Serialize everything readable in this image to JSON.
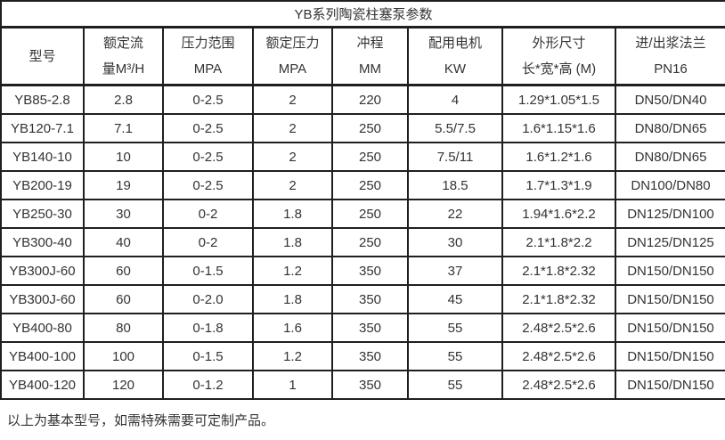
{
  "table": {
    "title": "YB系列陶瓷柱塞泵参数",
    "columns": [
      {
        "label": "型号",
        "sub": ""
      },
      {
        "label": "额定流",
        "sub": "量M³/H"
      },
      {
        "label": "压力范围",
        "sub": "MPA"
      },
      {
        "label": "额定压力",
        "sub": "MPA"
      },
      {
        "label": "冲程",
        "sub": "MM"
      },
      {
        "label": "配用电机",
        "sub": "KW"
      },
      {
        "label": "外形尺寸",
        "sub": "长*宽*高 (M)"
      },
      {
        "label": "进/出浆法兰",
        "sub": "PN16"
      }
    ],
    "rows": [
      [
        "YB85-2.8",
        "2.8",
        "0-2.5",
        "2",
        "220",
        "4",
        "1.29*1.05*1.5",
        "DN50/DN40"
      ],
      [
        "YB120-7.1",
        "7.1",
        "0-2.5",
        "2",
        "250",
        "5.5/7.5",
        "1.6*1.15*1.6",
        "DN80/DN65"
      ],
      [
        "YB140-10",
        "10",
        "0-2.5",
        "2",
        "250",
        "7.5/11",
        "1.6*1.2*1.6",
        "DN80/DN65"
      ],
      [
        "YB200-19",
        "19",
        "0-2.5",
        "2",
        "250",
        "18.5",
        "1.7*1.3*1.9",
        "DN100/DN80"
      ],
      [
        "YB250-30",
        "30",
        "0-2",
        "1.8",
        "250",
        "22",
        "1.94*1.6*2.2",
        "DN125/DN100"
      ],
      [
        "YB300-40",
        "40",
        "0-2",
        "1.8",
        "250",
        "30",
        "2.1*1.8*2.2",
        "DN125/DN125"
      ],
      [
        "YB300J-60",
        "60",
        "0-1.5",
        "1.2",
        "350",
        "37",
        "2.1*1.8*2.32",
        "DN150/DN150"
      ],
      [
        "YB300J-60",
        "60",
        "0-2.0",
        "1.8",
        "350",
        "45",
        "2.1*1.8*2.32",
        "DN150/DN150"
      ],
      [
        "YB400-80",
        "80",
        "0-1.8",
        "1.6",
        "350",
        "55",
        "2.48*2.5*2.6",
        "DN150/DN150"
      ],
      [
        "YB400-100",
        "100",
        "0-1.5",
        "1.2",
        "350",
        "55",
        "2.48*2.5*2.6",
        "DN150/DN150"
      ],
      [
        "YB400-120",
        "120",
        "0-1.2",
        "1",
        "350",
        "55",
        "2.48*2.5*2.6",
        "DN150/DN150"
      ]
    ],
    "footer_note": "以上为基本型号，如需特殊需要可定制产品。"
  },
  "colors": {
    "border": "#1f1f1f",
    "text": "#333333",
    "background": "#ffffff"
  }
}
